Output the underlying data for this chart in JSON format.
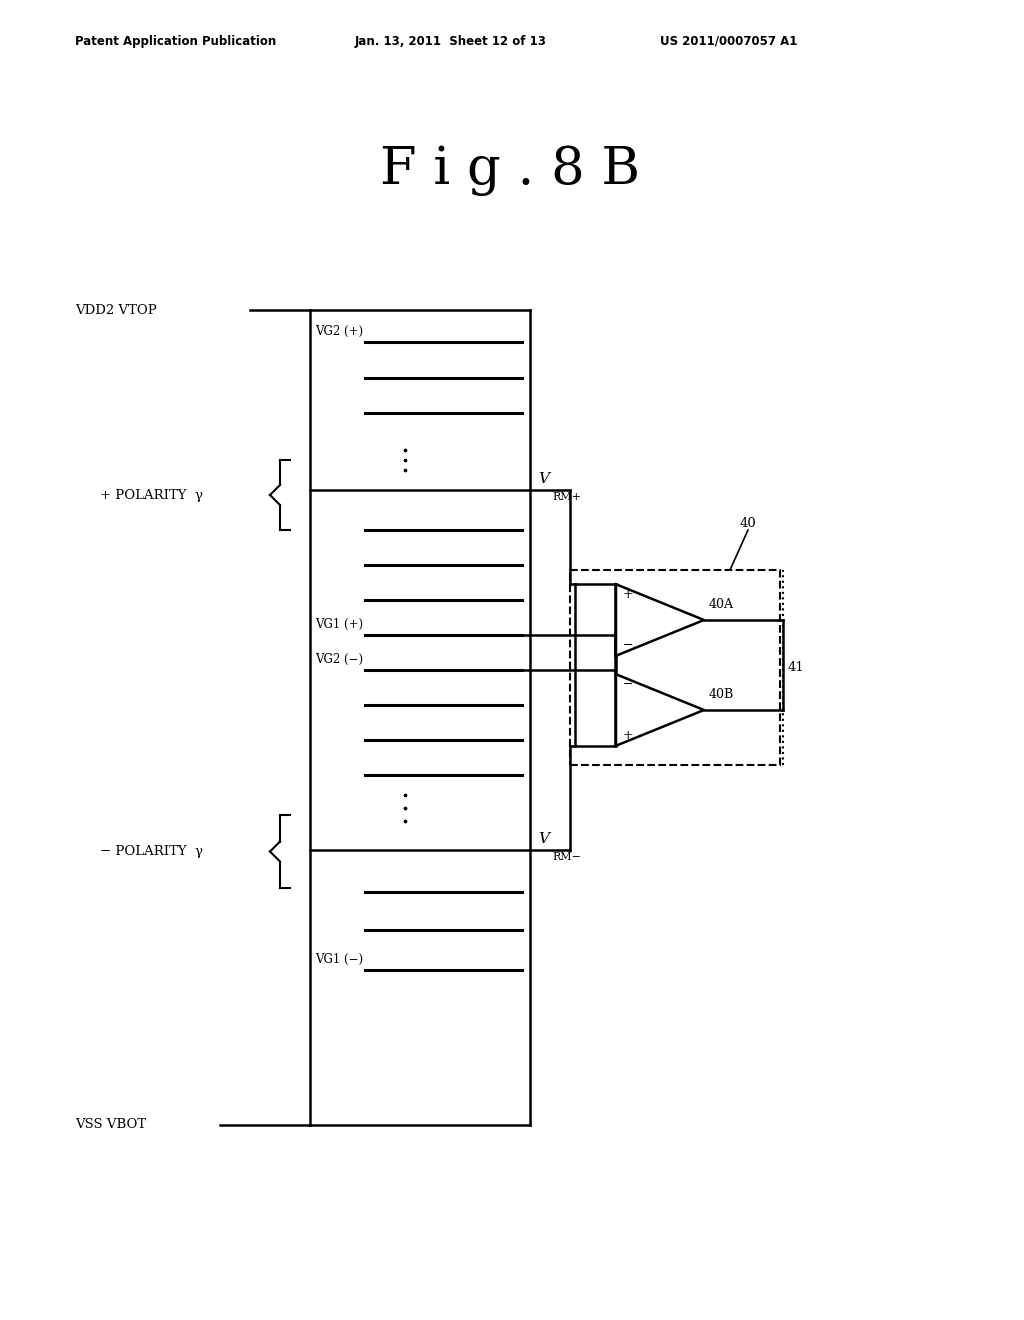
{
  "title": "F i g . 8 B",
  "header_left": "Patent Application Publication",
  "header_mid": "Jan. 13, 2011  Sheet 12 of 13",
  "header_right": "US 2011/0007057 A1",
  "bg_color": "#ffffff",
  "text_color": "#000000"
}
